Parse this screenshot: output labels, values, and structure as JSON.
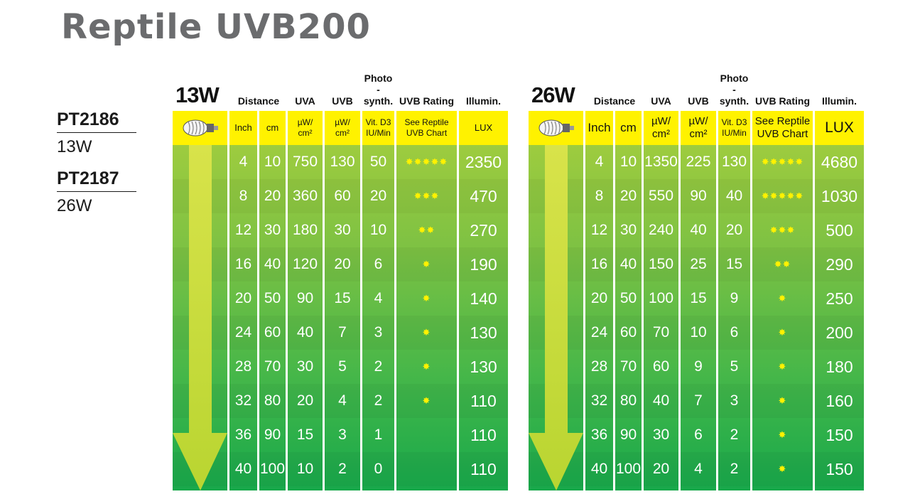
{
  "title": "Reptile UVB200",
  "models": [
    {
      "code": "PT2186",
      "watt": "13W"
    },
    {
      "code": "PT2187",
      "watt": "26W"
    }
  ],
  "headers": {
    "distance": "Distance",
    "uva": "UVA",
    "uvb": "UVB",
    "photo": "Photo\n-synth.",
    "rating": "UVB Rating",
    "illum": "Illumin."
  },
  "units": {
    "inch": "Inch",
    "cm": "cm",
    "uva": "µW/\ncm²",
    "uvb": "µW/\ncm²",
    "photo": "Vit. D3\nIU/Min",
    "rating": "See Reptile\nUVB Chart",
    "lux": "LUX"
  },
  "star_char": "✸",
  "colors": {
    "title_gray": "#6b6c6e",
    "header_yellow": "#fff200",
    "green_top": "#a8cf3d",
    "green_bottom": "#18a84b",
    "arrow_green": "#b9d531",
    "star_yellow": "#fff200"
  },
  "tables": [
    {
      "watt_label": "13W",
      "rows": [
        {
          "inch": "4",
          "cm": "10",
          "uva": "750",
          "uvb": "130",
          "photo": "50",
          "stars": 5,
          "lux": "2350"
        },
        {
          "inch": "8",
          "cm": "20",
          "uva": "360",
          "uvb": "60",
          "photo": "20",
          "stars": 3,
          "lux": "470"
        },
        {
          "inch": "12",
          "cm": "30",
          "uva": "180",
          "uvb": "30",
          "photo": "10",
          "stars": 2,
          "lux": "270"
        },
        {
          "inch": "16",
          "cm": "40",
          "uva": "120",
          "uvb": "20",
          "photo": "6",
          "stars": 1,
          "lux": "190"
        },
        {
          "inch": "20",
          "cm": "50",
          "uva": "90",
          "uvb": "15",
          "photo": "4",
          "stars": 1,
          "lux": "140"
        },
        {
          "inch": "24",
          "cm": "60",
          "uva": "40",
          "uvb": "7",
          "photo": "3",
          "stars": 1,
          "lux": "130"
        },
        {
          "inch": "28",
          "cm": "70",
          "uva": "30",
          "uvb": "5",
          "photo": "2",
          "stars": 1,
          "lux": "130"
        },
        {
          "inch": "32",
          "cm": "80",
          "uva": "20",
          "uvb": "4",
          "photo": "2",
          "stars": 1,
          "lux": "110"
        },
        {
          "inch": "36",
          "cm": "90",
          "uva": "15",
          "uvb": "3",
          "photo": "1",
          "stars": 0,
          "lux": "110"
        },
        {
          "inch": "40",
          "cm": "100",
          "uva": "10",
          "uvb": "2",
          "photo": "0",
          "stars": 0,
          "lux": "110"
        }
      ]
    },
    {
      "watt_label": "26W",
      "rows": [
        {
          "inch": "4",
          "cm": "10",
          "uva": "1350",
          "uvb": "225",
          "photo": "130",
          "stars": 5,
          "lux": "4680"
        },
        {
          "inch": "8",
          "cm": "20",
          "uva": "550",
          "uvb": "90",
          "photo": "40",
          "stars": 5,
          "lux": "1030"
        },
        {
          "inch": "12",
          "cm": "30",
          "uva": "240",
          "uvb": "40",
          "photo": "20",
          "stars": 3,
          "lux": "500"
        },
        {
          "inch": "16",
          "cm": "40",
          "uva": "150",
          "uvb": "25",
          "photo": "15",
          "stars": 2,
          "lux": "290"
        },
        {
          "inch": "20",
          "cm": "50",
          "uva": "100",
          "uvb": "15",
          "photo": "9",
          "stars": 1,
          "lux": "250"
        },
        {
          "inch": "24",
          "cm": "60",
          "uva": "70",
          "uvb": "10",
          "photo": "6",
          "stars": 1,
          "lux": "200"
        },
        {
          "inch": "28",
          "cm": "70",
          "uva": "60",
          "uvb": "9",
          "photo": "5",
          "stars": 1,
          "lux": "180"
        },
        {
          "inch": "32",
          "cm": "80",
          "uva": "40",
          "uvb": "7",
          "photo": "3",
          "stars": 1,
          "lux": "160"
        },
        {
          "inch": "36",
          "cm": "90",
          "uva": "30",
          "uvb": "6",
          "photo": "2",
          "stars": 1,
          "lux": "150"
        },
        {
          "inch": "40",
          "cm": "100",
          "uva": "20",
          "uvb": "4",
          "photo": "2",
          "stars": 1,
          "lux": "150"
        }
      ]
    }
  ]
}
